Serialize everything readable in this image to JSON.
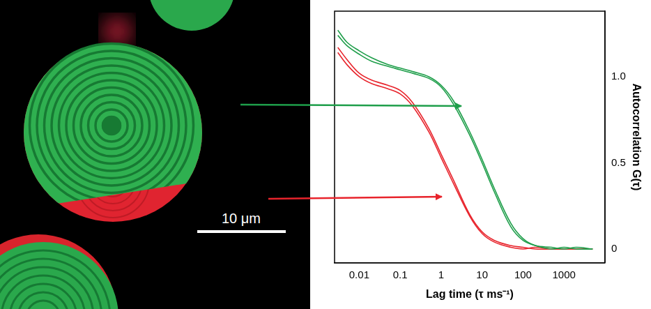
{
  "chart_data": {
    "type": "line",
    "x_label": "Lag time (τ ms⁻¹)",
    "y_label": "Autocorrelation G(τ)",
    "log": "x",
    "grid": false,
    "x": [
      0.003,
      0.005,
      0.01,
      0.02,
      0.05,
      0.1,
      0.2,
      0.5,
      1,
      2,
      5,
      10,
      20,
      50,
      100,
      200,
      500,
      1000,
      2000,
      5000
    ],
    "series": [
      {
        "color": "#1e9e4a",
        "values": [
          1.27,
          1.2,
          1.15,
          1.11,
          1.07,
          1.05,
          1.03,
          1.0,
          0.95,
          0.86,
          0.68,
          0.52,
          0.35,
          0.15,
          0.06,
          0.02,
          0.01,
          0.0,
          0.01,
          0.0
        ]
      },
      {
        "color": "#1e9e4a",
        "values": [
          1.24,
          1.18,
          1.13,
          1.09,
          1.06,
          1.04,
          1.02,
          0.99,
          0.94,
          0.84,
          0.66,
          0.5,
          0.33,
          0.13,
          0.05,
          0.02,
          0.0,
          0.01,
          0.0,
          0.0
        ]
      },
      {
        "color": "#e8242c",
        "values": [
          1.17,
          1.1,
          1.02,
          0.98,
          0.95,
          0.92,
          0.85,
          0.7,
          0.55,
          0.4,
          0.2,
          0.1,
          0.05,
          0.02,
          0.01,
          0.0,
          0.0,
          0.0,
          0.0,
          0.0
        ]
      },
      {
        "color": "#e8242c",
        "values": [
          1.14,
          1.07,
          1.0,
          0.96,
          0.93,
          0.9,
          0.83,
          0.68,
          0.53,
          0.38,
          0.19,
          0.09,
          0.04,
          0.01,
          0.0,
          0.01,
          0.0,
          0.0,
          0.0,
          0.0
        ]
      }
    ],
    "xlim": [
      0.0025,
      10000
    ],
    "xticks": [
      0.01,
      0.1,
      1,
      10,
      100,
      1000
    ],
    "ylim": [
      -0.08,
      1.38
    ],
    "yticks": [
      0,
      0.5,
      {
        "value": 1,
        "label": "1.0"
      }
    ]
  },
  "image": {
    "scale_bar": "10 μm"
  }
}
